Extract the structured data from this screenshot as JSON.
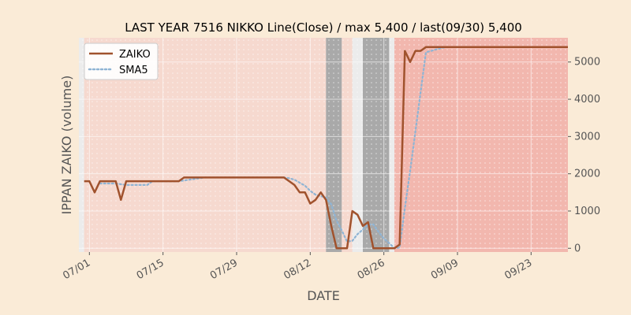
{
  "chart_data": {
    "type": "line",
    "title": "LAST YEAR 7516 NIKKO Line(Close) / max 5,400 / last(09/30) 5,400",
    "xlabel": "DATE",
    "ylabel": "IPPAN ZAIKO (volume)",
    "x_start": "2019-06-29",
    "x_end": "2019-09-30",
    "x_tick_labels": [
      "07/01",
      "07/15",
      "07/29",
      "08/12",
      "08/26",
      "09/09",
      "09/23"
    ],
    "x_tick_dates": [
      "2019-07-01",
      "2019-07-15",
      "2019-07-29",
      "2019-08-12",
      "2019-08-26",
      "2019-09-09",
      "2019-09-23"
    ],
    "y_ticks": [
      0,
      1000,
      2000,
      3000,
      4000,
      5000
    ],
    "ylim": [
      -100,
      5650
    ],
    "y_axis_side": "right",
    "grid": true,
    "legend_position": "top-left",
    "colors": {
      "figure_background": "#faebd7",
      "plot_background": "#ececec",
      "zaiko_line": "#a0522d",
      "sma5_line": "#8fb4d4",
      "band_light": "#f6d9cf",
      "band_medium": "#f1c1b4",
      "band_strong": "#f2b7ae",
      "band_gray": "#a9a9a9"
    },
    "background_bands": [
      {
        "start": "2019-06-30",
        "end": "2019-08-15",
        "level": "light"
      },
      {
        "start": "2019-08-15",
        "end": "2019-08-18",
        "level": "gray"
      },
      {
        "start": "2019-08-18",
        "end": "2019-08-20",
        "level": "light"
      },
      {
        "start": "2019-08-22",
        "end": "2019-08-27",
        "level": "gray"
      },
      {
        "start": "2019-08-28",
        "end": "2019-09-30",
        "level": "strong"
      }
    ],
    "series": [
      {
        "name": "ZAIKO",
        "style": "solid",
        "points": [
          [
            "2019-06-30",
            1800
          ],
          [
            "2019-07-01",
            1800
          ],
          [
            "2019-07-02",
            1500
          ],
          [
            "2019-07-03",
            1800
          ],
          [
            "2019-07-04",
            1800
          ],
          [
            "2019-07-05",
            1800
          ],
          [
            "2019-07-06",
            1800
          ],
          [
            "2019-07-07",
            1300
          ],
          [
            "2019-07-08",
            1800
          ],
          [
            "2019-07-09",
            1800
          ],
          [
            "2019-07-10",
            1800
          ],
          [
            "2019-07-11",
            1800
          ],
          [
            "2019-07-12",
            1800
          ],
          [
            "2019-07-13",
            1800
          ],
          [
            "2019-07-14",
            1800
          ],
          [
            "2019-07-15",
            1800
          ],
          [
            "2019-07-16",
            1800
          ],
          [
            "2019-07-17",
            1800
          ],
          [
            "2019-07-18",
            1800
          ],
          [
            "2019-07-19",
            1900
          ],
          [
            "2019-07-20",
            1900
          ],
          [
            "2019-07-21",
            1900
          ],
          [
            "2019-07-22",
            1900
          ],
          [
            "2019-07-23",
            1900
          ],
          [
            "2019-07-24",
            1900
          ],
          [
            "2019-07-25",
            1900
          ],
          [
            "2019-07-26",
            1900
          ],
          [
            "2019-07-27",
            1900
          ],
          [
            "2019-07-28",
            1900
          ],
          [
            "2019-07-29",
            1900
          ],
          [
            "2019-07-30",
            1900
          ],
          [
            "2019-07-31",
            1900
          ],
          [
            "2019-08-01",
            1900
          ],
          [
            "2019-08-02",
            1900
          ],
          [
            "2019-08-03",
            1900
          ],
          [
            "2019-08-04",
            1900
          ],
          [
            "2019-08-05",
            1900
          ],
          [
            "2019-08-06",
            1900
          ],
          [
            "2019-08-07",
            1900
          ],
          [
            "2019-08-08",
            1800
          ],
          [
            "2019-08-09",
            1700
          ],
          [
            "2019-08-10",
            1500
          ],
          [
            "2019-08-11",
            1500
          ],
          [
            "2019-08-12",
            1200
          ],
          [
            "2019-08-13",
            1300
          ],
          [
            "2019-08-14",
            1500
          ],
          [
            "2019-08-15",
            1300
          ],
          [
            "2019-08-16",
            600
          ],
          [
            "2019-08-17",
            0
          ],
          [
            "2019-08-18",
            0
          ],
          [
            "2019-08-19",
            0
          ],
          [
            "2019-08-20",
            1000
          ],
          [
            "2019-08-21",
            900
          ],
          [
            "2019-08-22",
            600
          ],
          [
            "2019-08-23",
            700
          ],
          [
            "2019-08-24",
            0
          ],
          [
            "2019-08-25",
            0
          ],
          [
            "2019-08-26",
            0
          ],
          [
            "2019-08-27",
            0
          ],
          [
            "2019-08-28",
            0
          ],
          [
            "2019-08-29",
            100
          ],
          [
            "2019-08-30",
            5300
          ],
          [
            "2019-08-31",
            5000
          ],
          [
            "2019-09-01",
            5300
          ],
          [
            "2019-09-02",
            5300
          ],
          [
            "2019-09-03",
            5400
          ],
          [
            "2019-09-30",
            5400
          ]
        ]
      },
      {
        "name": "SMA5",
        "style": "dotted",
        "points": [
          [
            "2019-07-03",
            1740
          ],
          [
            "2019-07-04",
            1740
          ],
          [
            "2019-07-05",
            1740
          ],
          [
            "2019-07-06",
            1740
          ],
          [
            "2019-07-08",
            1700
          ],
          [
            "2019-07-09",
            1700
          ],
          [
            "2019-07-10",
            1700
          ],
          [
            "2019-07-11",
            1700
          ],
          [
            "2019-07-12",
            1700
          ],
          [
            "2019-07-13",
            1800
          ],
          [
            "2019-07-18",
            1800
          ],
          [
            "2019-07-19",
            1820
          ],
          [
            "2019-07-20",
            1840
          ],
          [
            "2019-07-21",
            1860
          ],
          [
            "2019-07-22",
            1880
          ],
          [
            "2019-07-23",
            1900
          ],
          [
            "2019-08-07",
            1900
          ],
          [
            "2019-08-08",
            1880
          ],
          [
            "2019-08-09",
            1840
          ],
          [
            "2019-08-10",
            1760
          ],
          [
            "2019-08-11",
            1680
          ],
          [
            "2019-08-12",
            1540
          ],
          [
            "2019-08-13",
            1440
          ],
          [
            "2019-08-14",
            1400
          ],
          [
            "2019-08-15",
            1360
          ],
          [
            "2019-08-16",
            1180
          ],
          [
            "2019-08-17",
            740
          ],
          [
            "2019-08-18",
            480
          ],
          [
            "2019-08-19",
            180
          ],
          [
            "2019-08-20",
            200
          ],
          [
            "2019-08-21",
            380
          ],
          [
            "2019-08-22",
            500
          ],
          [
            "2019-08-23",
            640
          ],
          [
            "2019-08-24",
            640
          ],
          [
            "2019-08-25",
            440
          ],
          [
            "2019-08-26",
            260
          ],
          [
            "2019-08-27",
            140
          ],
          [
            "2019-08-28",
            0
          ],
          [
            "2019-08-29",
            20
          ],
          [
            "2019-08-30",
            1080
          ],
          [
            "2019-08-31",
            2080
          ],
          [
            "2019-09-01",
            3140
          ],
          [
            "2019-09-02",
            4200
          ],
          [
            "2019-09-03",
            5260
          ],
          [
            "2019-09-04",
            5300
          ],
          [
            "2019-09-05",
            5340
          ],
          [
            "2019-09-06",
            5380
          ],
          [
            "2019-09-07",
            5400
          ],
          [
            "2019-09-30",
            5400
          ]
        ]
      }
    ]
  }
}
